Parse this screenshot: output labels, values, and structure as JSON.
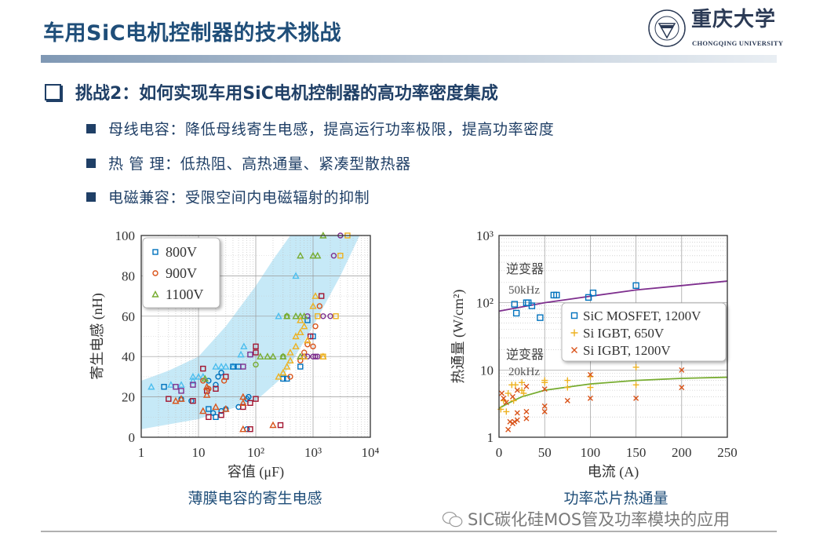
{
  "header": {
    "title": "车用SiC电机控制器的技术挑战",
    "logo": {
      "name_cn": "重庆大学",
      "name_en": "CHONGQING UNIVERSITY"
    },
    "accent_color": "#1f4e79"
  },
  "section": {
    "heading": "挑战2：如何实现车用SiC电机控制器的高功率密度集成",
    "bullets": [
      {
        "text": "母线电容：降低母线寄生电感，提高运行功率极限，提高功率密度"
      },
      {
        "text": "热 管 理：低热阻、高热通量、紧凑型散热器"
      },
      {
        "text": "电磁兼容：受限空间内电磁辐射的抑制"
      }
    ]
  },
  "captions": {
    "left": "薄膜电容的寄生电感",
    "right": "功率芯片热通量"
  },
  "watermark": {
    "icon": "wechat-icon",
    "text": "SIC碳化硅MOS管及功率模块的应用"
  },
  "chart_data": [
    {
      "type": "scatter",
      "xlabel": "容值 (μF)",
      "ylabel": "寄生电感 (nH)",
      "xscale": "log",
      "xlim": [
        1,
        10000
      ],
      "ylim": [
        0,
        100
      ],
      "xticks": [
        "1",
        "10",
        "10²",
        "10³",
        "10⁴"
      ],
      "yticks": [
        "0",
        "20",
        "40",
        "60",
        "80",
        "100"
      ],
      "grid": true,
      "legend_position": "top-left",
      "legend": [
        {
          "name": "800V",
          "marker": "square",
          "color": "#0072bd"
        },
        {
          "name": "900V",
          "marker": "circle",
          "color": "#d95319"
        },
        {
          "name": "1100V",
          "marker": "triangle",
          "color": "#77ac30"
        }
      ],
      "band": {
        "color": "#c6e9f7",
        "upper": [
          [
            1,
            28
          ],
          [
            3,
            33
          ],
          [
            10,
            40
          ],
          [
            30,
            55
          ],
          [
            100,
            75
          ],
          [
            200,
            88
          ],
          [
            400,
            100
          ]
        ],
        "lower": [
          [
            1,
            4
          ],
          [
            10,
            9
          ],
          [
            100,
            18
          ],
          [
            300,
            30
          ],
          [
            1000,
            55
          ],
          [
            3000,
            80
          ],
          [
            6500,
            100
          ]
        ]
      },
      "groups": [
        {
          "marker": "triangle",
          "color": "#4dbeee",
          "points": [
            [
              1.5,
              25
            ],
            [
              3.3,
              26
            ],
            [
              5,
              26
            ],
            [
              8,
              30
            ],
            [
              8,
              28
            ],
            [
              10,
              30
            ],
            [
              12,
              30
            ],
            [
              20,
              35
            ],
            [
              25,
              35
            ],
            [
              30,
              35
            ],
            [
              40,
              35
            ],
            [
              55,
              41
            ],
            [
              62,
              45
            ],
            [
              250,
              60
            ],
            [
              500,
              80
            ]
          ]
        },
        {
          "marker": "square",
          "color": "#0072bd",
          "points": [
            [
              2.5,
              25
            ],
            [
              20,
              10
            ],
            [
              15,
              14
            ],
            [
              40,
              35
            ],
            [
              50,
              35
            ],
            [
              300,
              29
            ],
            [
              350,
              29
            ],
            [
              800,
              58
            ],
            [
              1000,
              50
            ],
            [
              600,
              35
            ]
          ]
        },
        {
          "marker": "circle",
          "color": "#0072bd",
          "points": [
            [
              5,
              19
            ],
            [
              7.5,
              18
            ],
            [
              15,
              28
            ],
            [
              22,
              30
            ],
            [
              25,
              32
            ],
            [
              20,
              26
            ],
            [
              18,
              12
            ],
            [
              25,
              13
            ],
            [
              30,
              14
            ],
            [
              50,
              15
            ],
            [
              70,
              19
            ],
            [
              75,
              20
            ],
            [
              70,
              4
            ]
          ]
        },
        {
          "marker": "square",
          "color": "#a2142f",
          "points": [
            [
              3,
              19
            ],
            [
              8,
              18
            ],
            [
              12,
              34
            ],
            [
              14,
              23
            ],
            [
              20,
              24
            ],
            [
              30,
              30
            ],
            [
              15,
              10
            ],
            [
              25,
              11
            ],
            [
              60,
              15
            ],
            [
              80,
              17
            ],
            [
              100,
              19
            ],
            [
              80,
              4
            ],
            [
              270,
              6
            ],
            [
              100,
              45
            ],
            [
              100,
              42
            ],
            [
              1400,
              70
            ],
            [
              900,
              50
            ]
          ]
        },
        {
          "marker": "triangle",
          "color": "#d95319",
          "points": [
            [
              4,
              18
            ],
            [
              5,
              19
            ],
            [
              14,
              21
            ],
            [
              14,
              25
            ],
            [
              12,
              13
            ],
            [
              20,
              15
            ],
            [
              30,
              14
            ],
            [
              60,
              4
            ],
            [
              200,
              6
            ],
            [
              60,
              17
            ],
            [
              60,
              20
            ]
          ]
        },
        {
          "marker": "circle",
          "color": "#d95319",
          "points": [
            [
              12,
              28
            ],
            [
              15,
              24
            ],
            [
              28,
              28
            ],
            [
              1300,
              65
            ],
            [
              1100,
              55
            ],
            [
              800,
              46
            ],
            [
              700,
              42
            ],
            [
              400,
              30
            ],
            [
              600,
              38
            ],
            [
              1000,
              45
            ]
          ]
        },
        {
          "marker": "square",
          "color": "#7e2f8e",
          "points": [
            [
              4,
              25
            ],
            [
              5,
              23
            ],
            [
              8,
              26
            ],
            [
              80,
              41
            ],
            [
              60,
              35
            ]
          ]
        },
        {
          "marker": "circle",
          "color": "#7e2f8e",
          "points": [
            [
              1000,
              40
            ],
            [
              1100,
              40
            ],
            [
              1200,
              40
            ],
            [
              800,
              40
            ],
            [
              1500,
              60
            ],
            [
              2000,
              60
            ],
            [
              800,
              60
            ],
            [
              2300,
              90
            ],
            [
              3000,
              100
            ],
            [
              700,
              40
            ]
          ]
        },
        {
          "marker": "triangle",
          "color": "#77ac30",
          "points": [
            [
              13,
              29
            ],
            [
              120,
              40
            ],
            [
              160,
              40
            ],
            [
              200,
              40
            ],
            [
              300,
              40
            ],
            [
              350,
              60
            ],
            [
              500,
              60
            ],
            [
              600,
              60
            ],
            [
              700,
              60
            ],
            [
              600,
              40
            ],
            [
              600,
              90
            ],
            [
              1000,
              90
            ],
            [
              1200,
              90
            ],
            [
              1500,
              100
            ]
          ]
        },
        {
          "marker": "circle",
          "color": "#77ac30",
          "points": [
            [
              100,
              36
            ],
            [
              350,
              60
            ],
            [
              300,
              40
            ]
          ]
        },
        {
          "marker": "square",
          "color": "#edb120",
          "points": [
            [
              3000,
              90
            ],
            [
              4000,
              100
            ],
            [
              2500,
              60
            ],
            [
              1500,
              40
            ],
            [
              1200,
              60
            ]
          ]
        },
        {
          "marker": "triangle",
          "color": "#edb120",
          "points": [
            [
              250,
              30
            ],
            [
              300,
              32
            ],
            [
              350,
              35
            ],
            [
              400,
              38
            ],
            [
              500,
              45
            ],
            [
              500,
              50
            ],
            [
              600,
              52
            ],
            [
              700,
              55
            ],
            [
              600,
              58
            ],
            [
              800,
              48
            ],
            [
              1000,
              65
            ],
            [
              1100,
              70
            ],
            [
              400,
              42
            ],
            [
              1500,
              40
            ],
            [
              700,
              40
            ]
          ]
        }
      ]
    },
    {
      "type": "scatter",
      "xlabel": "电流 (A)",
      "ylabel": "热通量 (W/cm²)",
      "yscale": "log",
      "xlim": [
        0,
        250
      ],
      "ylim": [
        1,
        1000
      ],
      "xticks": [
        "0",
        "50",
        "100",
        "150",
        "200",
        "250"
      ],
      "yticks": [
        "1",
        "10",
        "10²",
        "10³"
      ],
      "grid": true,
      "legend_position": "center-right",
      "annotations": [
        {
          "line1": "逆变器",
          "line2": "50kHz"
        },
        {
          "line1": "逆变器",
          "line2": "20kHz"
        }
      ],
      "series": [
        {
          "name": "SiC MOSFET, 1200V",
          "marker": "square",
          "color": "#0072bd",
          "points": [
            [
              17,
              95
            ],
            [
              19,
              70
            ],
            [
              30,
              100
            ],
            [
              32,
              100
            ],
            [
              36,
              90
            ],
            [
              45,
              60
            ],
            [
              60,
              130
            ],
            [
              63,
              130
            ],
            [
              98,
              120
            ],
            [
              103,
              140
            ],
            [
              150,
              180
            ]
          ]
        },
        {
          "name": "Si IGBT, 650V",
          "marker": "plus",
          "color": "#edb120",
          "points": [
            [
              2,
              2.6
            ],
            [
              5,
              3.5
            ],
            [
              8,
              2.4
            ],
            [
              10,
              4.5
            ],
            [
              14,
              6
            ],
            [
              16,
              3.5
            ],
            [
              18,
              6
            ],
            [
              25,
              6.5
            ],
            [
              25,
              5
            ],
            [
              27,
              4.5
            ],
            [
              50,
              7
            ],
            [
              50,
              6.5
            ],
            [
              75,
              7
            ],
            [
              75,
              5.5
            ],
            [
              100,
              8
            ],
            [
              100,
              5.5
            ],
            [
              150,
              11
            ],
            [
              150,
              6
            ]
          ]
        },
        {
          "name": "Si IGBT, 1200V",
          "marker": "cross",
          "color": "#d95319",
          "points": [
            [
              3,
              4.5
            ],
            [
              5,
              3.8
            ],
            [
              8,
              3.3
            ],
            [
              10,
              1.3
            ],
            [
              12,
              1.7
            ],
            [
              15,
              1.6
            ],
            [
              15,
              4
            ],
            [
              17,
              1.7
            ],
            [
              20,
              1.8
            ],
            [
              20,
              5
            ],
            [
              20,
              2.3
            ],
            [
              30,
              5.7
            ],
            [
              30,
              2.4
            ],
            [
              30,
              1.9
            ],
            [
              50,
              5.2
            ],
            [
              50,
              2.9
            ],
            [
              50,
              2.4
            ],
            [
              75,
              3.5
            ],
            [
              100,
              8.5
            ],
            [
              100,
              3.8
            ],
            [
              150,
              3.8
            ],
            [
              200,
              10
            ],
            [
              200,
              5.5
            ]
          ]
        }
      ],
      "fit_lines": [
        {
          "color": "#7e2f8e",
          "points": [
            [
              0,
              75
            ],
            [
              50,
              100
            ],
            [
              100,
              125
            ],
            [
              150,
              155
            ],
            [
              200,
              180
            ],
            [
              250,
              210
            ]
          ]
        },
        {
          "color": "#77ac30",
          "points": [
            [
              0,
              2.7
            ],
            [
              10,
              3.2
            ],
            [
              25,
              4
            ],
            [
              50,
              5
            ],
            [
              100,
              6.2
            ],
            [
              150,
              7
            ],
            [
              200,
              7.5
            ],
            [
              250,
              7.8
            ]
          ]
        }
      ]
    }
  ]
}
